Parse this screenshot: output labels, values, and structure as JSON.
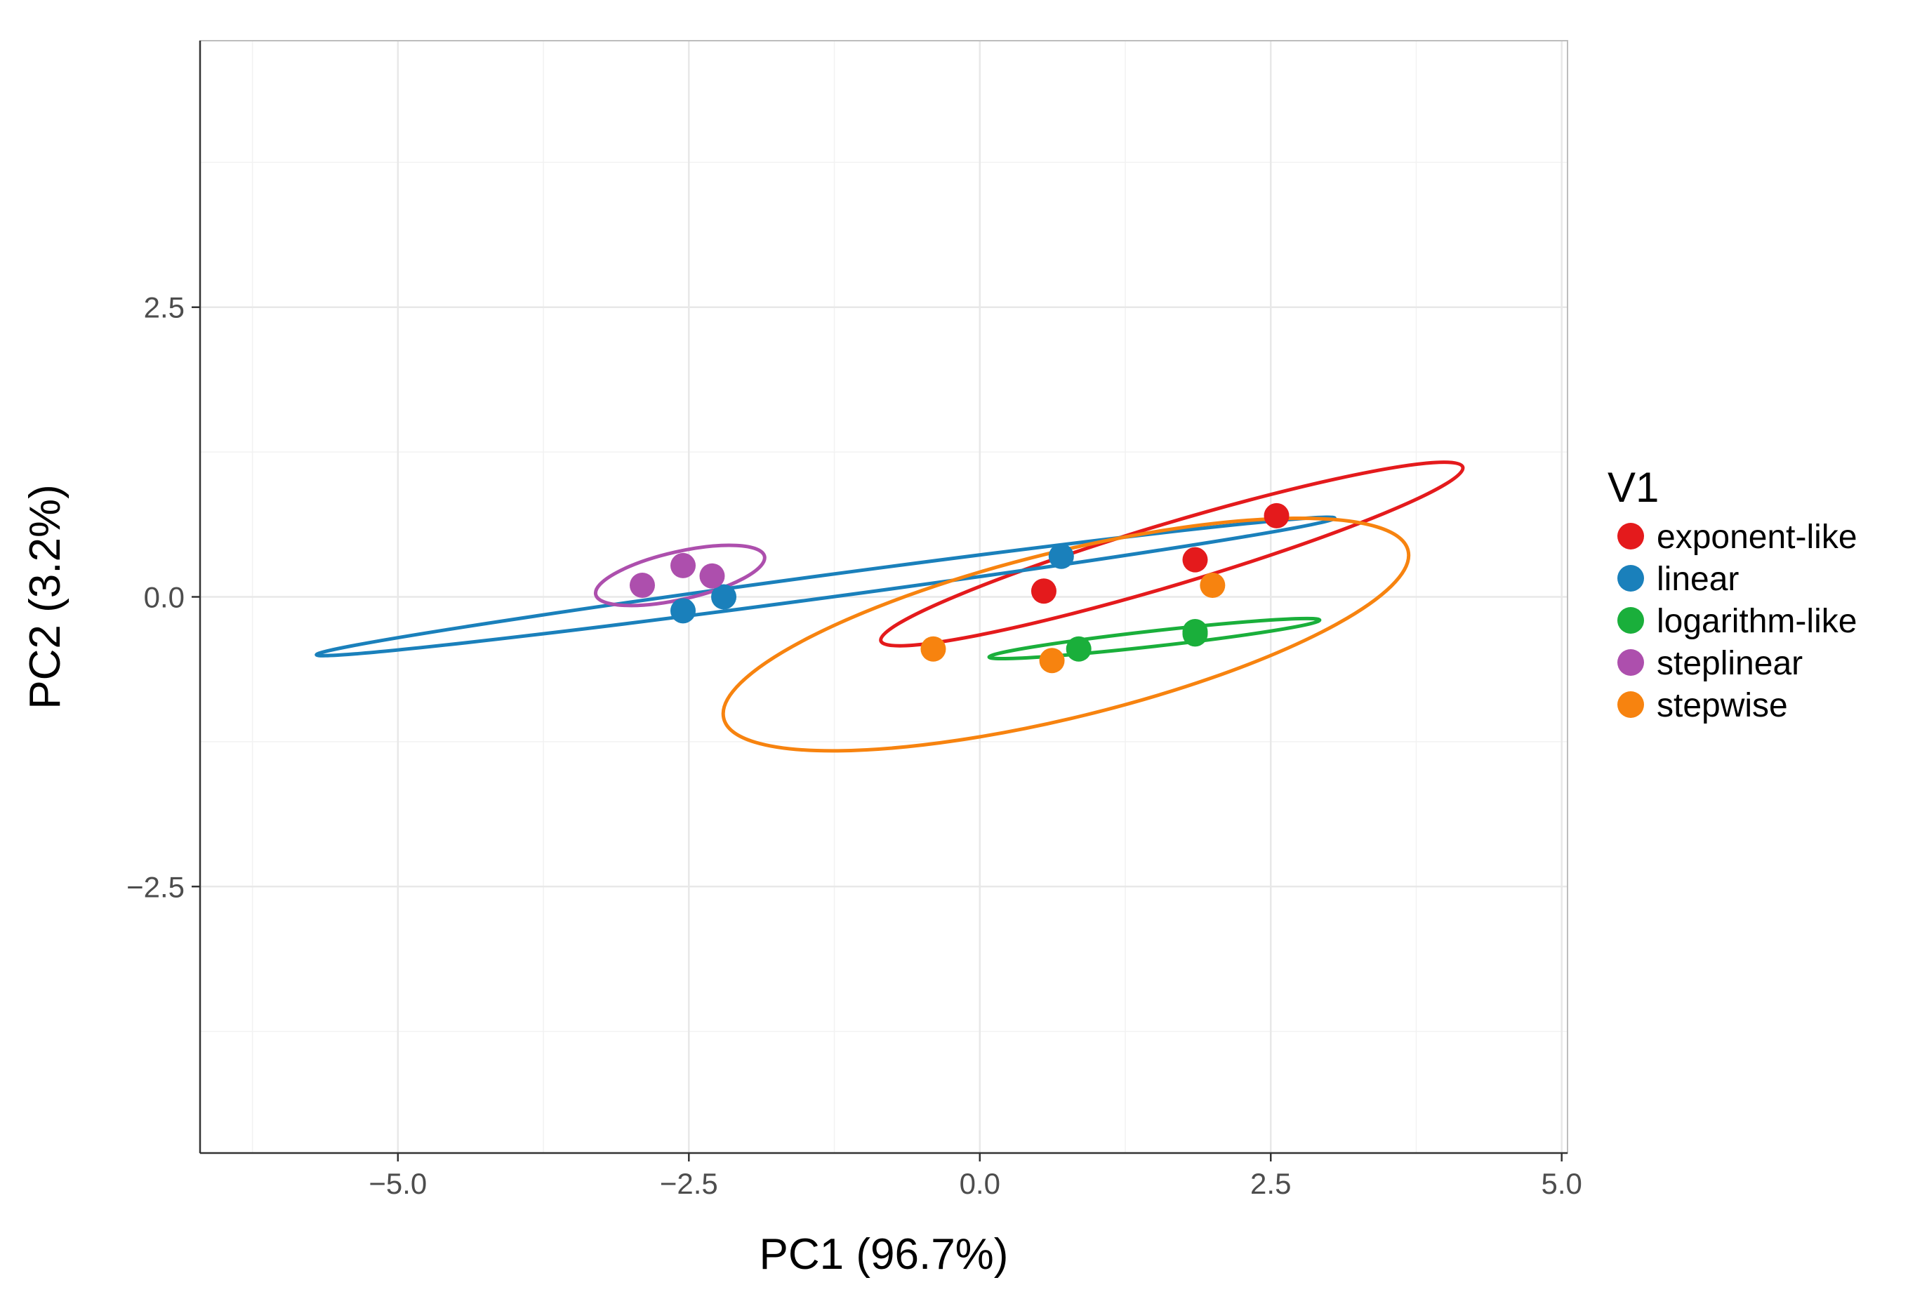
{
  "chart_data": {
    "type": "scatter",
    "title": "",
    "xlabel": "PC1 (96.7%)",
    "ylabel": "PC2 (3.2%)",
    "xlim": [
      -6.7,
      5.05
    ],
    "ylim": [
      -4.8,
      4.8
    ],
    "xticks": [
      -5.0,
      -2.5,
      0.0,
      2.5,
      5.0
    ],
    "xtick_labels": [
      "−5.0",
      "−2.5",
      "0.0",
      "2.5",
      "5.0"
    ],
    "yticks": [
      -2.5,
      0.0,
      2.5
    ],
    "ytick_labels": [
      "−2.5",
      "0.0",
      "2.5"
    ],
    "grid": true,
    "legend": {
      "title": "V1",
      "position": "right"
    },
    "series": [
      {
        "name": "exponent-like",
        "color": "#e41a1c",
        "x": [
          0.55,
          1.85,
          2.55
        ],
        "y": [
          0.05,
          0.32,
          0.7
        ],
        "ellipse": [
          [
            -0.85,
            -0.38
          ],
          [
            4.15,
            1.12
          ]
        ]
      },
      {
        "name": "linear",
        "color": "#1a80bb",
        "x": [
          -2.55,
          -2.2,
          0.7
        ],
        "y": [
          -0.12,
          0.0,
          0.35
        ],
        "ellipse": [
          [
            -5.7,
            -0.5
          ],
          [
            3.05,
            0.68
          ]
        ]
      },
      {
        "name": "logarithm-like",
        "color": "#1aaf3b",
        "x": [
          0.85,
          1.85,
          1.85
        ],
        "y": [
          -0.45,
          -0.32,
          -0.3
        ],
        "ellipse": [
          [
            0.08,
            -0.52
          ],
          [
            2.92,
            -0.2
          ]
        ]
      },
      {
        "name": "steplinear",
        "color": "#ad4fad",
        "x": [
          -2.9,
          -2.55,
          -2.3
        ],
        "y": [
          0.1,
          0.27,
          0.18
        ],
        "ellipse": [
          [
            -3.3,
            0.02
          ],
          [
            -1.85,
            0.35
          ]
        ]
      },
      {
        "name": "stepwise",
        "color": "#f7830f",
        "x": [
          -0.4,
          0.62,
          2.0
        ],
        "y": [
          -0.45,
          -0.55,
          0.1
        ],
        "ellipse": [
          [
            -2.2,
            -1.05
          ],
          [
            3.68,
            0.4
          ]
        ]
      }
    ]
  }
}
